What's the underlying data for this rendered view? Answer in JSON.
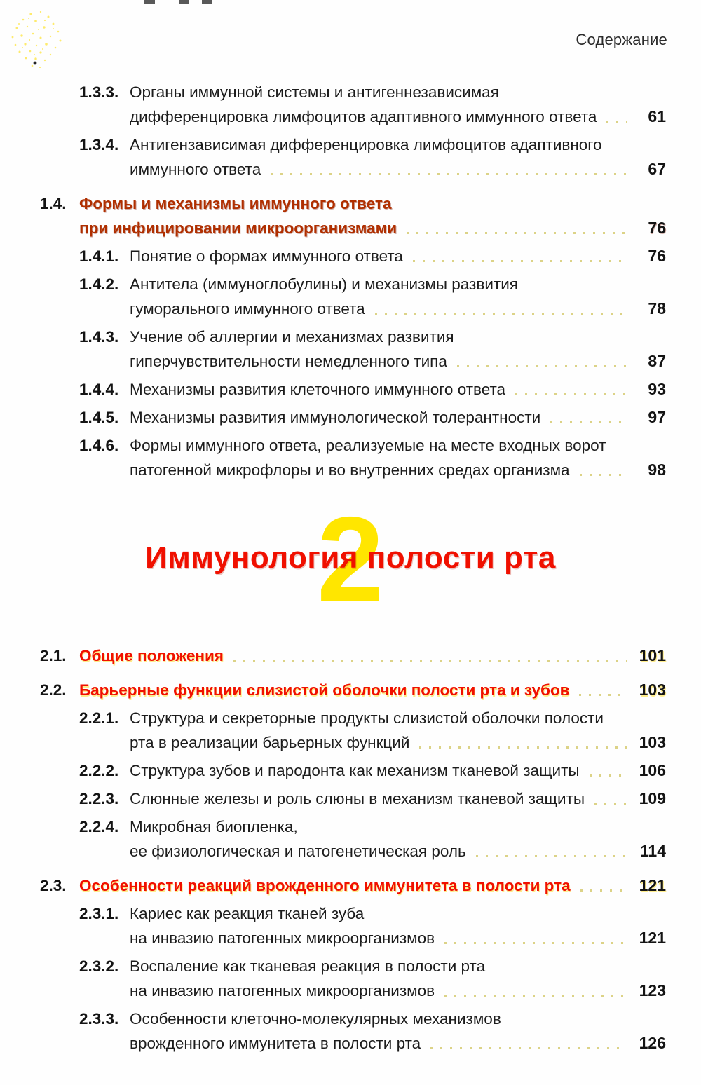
{
  "page_header": "Содержание",
  "colors": {
    "accent_red": "#f01000",
    "accent_dark_red": "#b02f00",
    "chapter_number_yellow": "#ffe600",
    "text_black": "#1c1c1c",
    "leader_dot": "#d6cb72"
  },
  "chapter": {
    "number": "2",
    "title": "Иммунология полости рта"
  },
  "toc_part1": [
    {
      "num": "1.3.3.",
      "level": "sub",
      "lines": [
        "Органы иммунной системы и антигеннезависимая",
        "дифференцировка лимфоцитов адаптивного иммунного ответа"
      ],
      "page": "61"
    },
    {
      "num": "1.3.4.",
      "level": "sub",
      "lines": [
        "Антигензависимая дифференцировка лимфоцитов адаптивного",
        "иммунного ответа"
      ],
      "page": "67"
    },
    {
      "num": "1.4.",
      "level": "section dark",
      "lines": [
        "Формы и механизмы иммунного ответа",
        "при инфицировании микроорганизмами"
      ],
      "page": "76"
    },
    {
      "num": "1.4.1.",
      "level": "sub",
      "lines": [
        "Понятие о формах иммунного ответа"
      ],
      "page": "76"
    },
    {
      "num": "1.4.2.",
      "level": "sub",
      "lines": [
        "Антитела (иммуноглобулины) и механизмы развития",
        "гуморального иммунного ответа"
      ],
      "page": "78"
    },
    {
      "num": "1.4.3.",
      "level": "sub",
      "lines": [
        "Учение об аллергии и механизмах развития",
        "гиперчувствительности немедленного типа"
      ],
      "page": "87"
    },
    {
      "num": "1.4.4.",
      "level": "sub",
      "lines": [
        "Механизмы развития клеточного иммунного ответа"
      ],
      "page": "93"
    },
    {
      "num": "1.4.5.",
      "level": "sub",
      "lines": [
        "Механизмы развития иммунологической толерантности"
      ],
      "page": "97"
    },
    {
      "num": "1.4.6.",
      "level": "sub",
      "lines": [
        "Формы иммунного ответа, реализуемые на месте входных ворот",
        "патогенной микрофлоры и во внутренних средах организма"
      ],
      "page": "98"
    }
  ],
  "toc_part2": [
    {
      "num": "2.1.",
      "level": "section",
      "lines": [
        "Общие положения"
      ],
      "page": "101"
    },
    {
      "num": "2.2.",
      "level": "section",
      "lines": [
        "Барьерные функции слизистой оболочки полости рта и зубов"
      ],
      "page": "103"
    },
    {
      "num": "2.2.1.",
      "level": "sub",
      "lines": [
        "Структура и секреторные продукты слизистой оболочки полости",
        "рта в реализации барьерных функций"
      ],
      "page": "103"
    },
    {
      "num": "2.2.2.",
      "level": "sub",
      "lines": [
        "Структура зубов и пародонта как механизм тканевой защиты"
      ],
      "page": "106"
    },
    {
      "num": "2.2.3.",
      "level": "sub",
      "lines": [
        "Слюнные железы и роль слюны в механизм тканевой защиты"
      ],
      "page": "109"
    },
    {
      "num": "2.2.4.",
      "level": "sub",
      "lines": [
        "Микробная биопленка,",
        "ее физиологическая и патогенетическая роль"
      ],
      "page": "114"
    },
    {
      "num": "2.3.",
      "level": "section",
      "lines": [
        "Особенности реакций врожденного иммунитета в полости рта"
      ],
      "page": "121"
    },
    {
      "num": "2.3.1.",
      "level": "sub",
      "lines": [
        "Кариес как реакция тканей зуба",
        "на инвазию патогенных микроорганизмов"
      ],
      "page": "121"
    },
    {
      "num": "2.3.2.",
      "level": "sub",
      "lines": [
        "Воспаление как тканевая реакция в полости рта",
        "на инвазию патогенных микроорганизмов"
      ],
      "page": "123"
    },
    {
      "num": "2.3.3.",
      "level": "sub",
      "lines": [
        "Особенности клеточно-молекулярных механизмов",
        "врожденного иммунитета в полости рта"
      ],
      "page": "126"
    }
  ]
}
